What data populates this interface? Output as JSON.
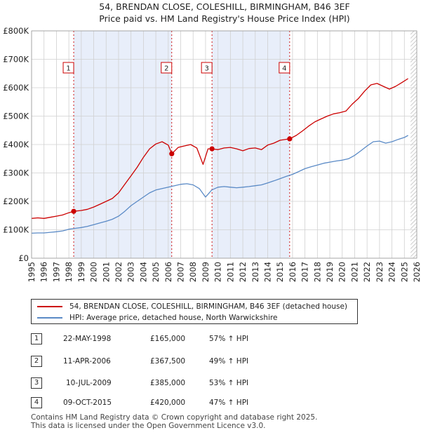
{
  "title_line1": "54, BRENDAN CLOSE, COLESHILL, BIRMINGHAM, B46 3EF",
  "title_line2": "Price paid vs. HM Land Registry's House Price Index (HPI)",
  "colors": {
    "property": "#cc0000",
    "hpi": "#5a8ac6",
    "shade": "#e8eefa",
    "grid": "#d0d0d0",
    "marker_line": "#cc0000"
  },
  "chart_data": {
    "type": "line",
    "title": "54, BRENDAN CLOSE, COLESHILL, BIRMINGHAM, B46 3EF — Price paid vs. HM Land Registry's House Price Index (HPI)",
    "xlim": [
      1995,
      2026
    ],
    "ylim": [
      0,
      800000
    ],
    "x_ticks": [
      1995,
      1996,
      1997,
      1998,
      1999,
      2000,
      2001,
      2002,
      2003,
      2004,
      2005,
      2006,
      2007,
      2008,
      2009,
      2010,
      2011,
      2012,
      2013,
      2014,
      2015,
      2016,
      2017,
      2018,
      2019,
      2020,
      2021,
      2022,
      2023,
      2024,
      2025,
      2026
    ],
    "y_ticks": [
      {
        "value": 0,
        "label": "£0"
      },
      {
        "value": 100000,
        "label": "£100K"
      },
      {
        "value": 200000,
        "label": "£200K"
      },
      {
        "value": 300000,
        "label": "£300K"
      },
      {
        "value": 400000,
        "label": "£400K"
      },
      {
        "value": 500000,
        "label": "£500K"
      },
      {
        "value": 600000,
        "label": "£600K"
      },
      {
        "value": 700000,
        "label": "£700K"
      },
      {
        "value": 800000,
        "label": "£800K"
      }
    ],
    "shaded_ranges": [
      [
        1998.39,
        2006.28
      ],
      [
        2009.52,
        2015.77
      ]
    ],
    "future_from": 2025.5,
    "series": [
      {
        "name": "54, BRENDAN CLOSE, COLESHILL, BIRMINGHAM, B46 3EF (detached house)",
        "x": [
          1995,
          1995.5,
          1996,
          1996.5,
          1997,
          1997.5,
          1998,
          1998.39,
          1999,
          1999.5,
          2000,
          2000.5,
          2001,
          2001.5,
          2002,
          2002.5,
          2003,
          2003.5,
          2004,
          2004.5,
          2005,
          2005.5,
          2006,
          2006.28,
          2006.8,
          2007.3,
          2007.8,
          2008.3,
          2008.8,
          2009.2,
          2009.52,
          2010,
          2010.5,
          2011,
          2011.5,
          2012,
          2012.5,
          2013,
          2013.5,
          2014,
          2014.5,
          2015,
          2015.77,
          2016.3,
          2016.8,
          2017.3,
          2017.8,
          2018.3,
          2018.8,
          2019.3,
          2019.8,
          2020.3,
          2020.8,
          2021.3,
          2021.8,
          2022.3,
          2022.8,
          2023.3,
          2023.8,
          2024.3,
          2024.8,
          2025.3
        ],
        "values": [
          140000,
          142000,
          140000,
          144000,
          148000,
          152000,
          160000,
          165000,
          168000,
          172000,
          180000,
          190000,
          200000,
          210000,
          230000,
          260000,
          290000,
          320000,
          355000,
          385000,
          402000,
          410000,
          398000,
          367500,
          390000,
          395000,
          400000,
          388000,
          330000,
          385000,
          385000,
          382000,
          388000,
          390000,
          385000,
          378000,
          386000,
          388000,
          382000,
          398000,
          405000,
          415000,
          420000,
          432000,
          448000,
          465000,
          480000,
          490000,
          500000,
          508000,
          512000,
          518000,
          542000,
          562000,
          588000,
          610000,
          615000,
          605000,
          595000,
          605000,
          618000,
          632000
        ]
      },
      {
        "name": "HPI: Average price, detached house, North Warwickshire",
        "x": [
          1995,
          1995.5,
          1996,
          1996.5,
          1997,
          1997.5,
          1998,
          1998.5,
          1999,
          1999.5,
          2000,
          2000.5,
          2001,
          2001.5,
          2002,
          2002.5,
          2003,
          2003.5,
          2004,
          2004.5,
          2005,
          2005.5,
          2006,
          2006.5,
          2007,
          2007.5,
          2008,
          2008.5,
          2009,
          2009.5,
          2010,
          2010.5,
          2011,
          2011.5,
          2012,
          2012.5,
          2013,
          2013.5,
          2014,
          2014.5,
          2015,
          2015.5,
          2016,
          2016.5,
          2017,
          2017.5,
          2018,
          2018.5,
          2019,
          2019.5,
          2020,
          2020.5,
          2021,
          2021.5,
          2022,
          2022.5,
          2023,
          2023.5,
          2024,
          2024.5,
          2025,
          2025.3
        ],
        "values": [
          88000,
          89000,
          89000,
          91000,
          93000,
          96000,
          102000,
          105000,
          108000,
          112000,
          118000,
          124000,
          130000,
          137000,
          148000,
          165000,
          185000,
          200000,
          215000,
          230000,
          240000,
          245000,
          250000,
          255000,
          260000,
          262000,
          258000,
          245000,
          215000,
          240000,
          250000,
          252000,
          250000,
          248000,
          250000,
          252000,
          255000,
          258000,
          265000,
          272000,
          280000,
          288000,
          295000,
          305000,
          315000,
          322000,
          328000,
          334000,
          338000,
          342000,
          345000,
          350000,
          362000,
          378000,
          395000,
          410000,
          412000,
          405000,
          410000,
          418000,
          425000,
          432000
        ]
      }
    ],
    "sales": [
      {
        "num": "1",
        "x": 1998.39,
        "value": 165000
      },
      {
        "num": "2",
        "x": 2006.28,
        "value": 367500
      },
      {
        "num": "3",
        "x": 2009.52,
        "value": 385000
      },
      {
        "num": "4",
        "x": 2015.77,
        "value": 420000
      }
    ]
  },
  "legend": {
    "property_label": "54, BRENDAN CLOSE, COLESHILL, BIRMINGHAM, B46 3EF (detached house)",
    "hpi_label": "HPI: Average price, detached house, North Warwickshire"
  },
  "transactions": [
    {
      "num": "1",
      "date": "22-MAY-1998",
      "price": "£165,000",
      "hpi": "57% ↑ HPI"
    },
    {
      "num": "2",
      "date": "11-APR-2006",
      "price": "£367,500",
      "hpi": "49% ↑ HPI"
    },
    {
      "num": "3",
      "date": "10-JUL-2009",
      "price": "£385,000",
      "hpi": "53% ↑ HPI"
    },
    {
      "num": "4",
      "date": "09-OCT-2015",
      "price": "£420,000",
      "hpi": "47% ↑ HPI"
    }
  ],
  "footer": {
    "line1": "Contains HM Land Registry data © Crown copyright and database right 2025.",
    "line2": "This data is licensed under the Open Government Licence v3.0."
  }
}
